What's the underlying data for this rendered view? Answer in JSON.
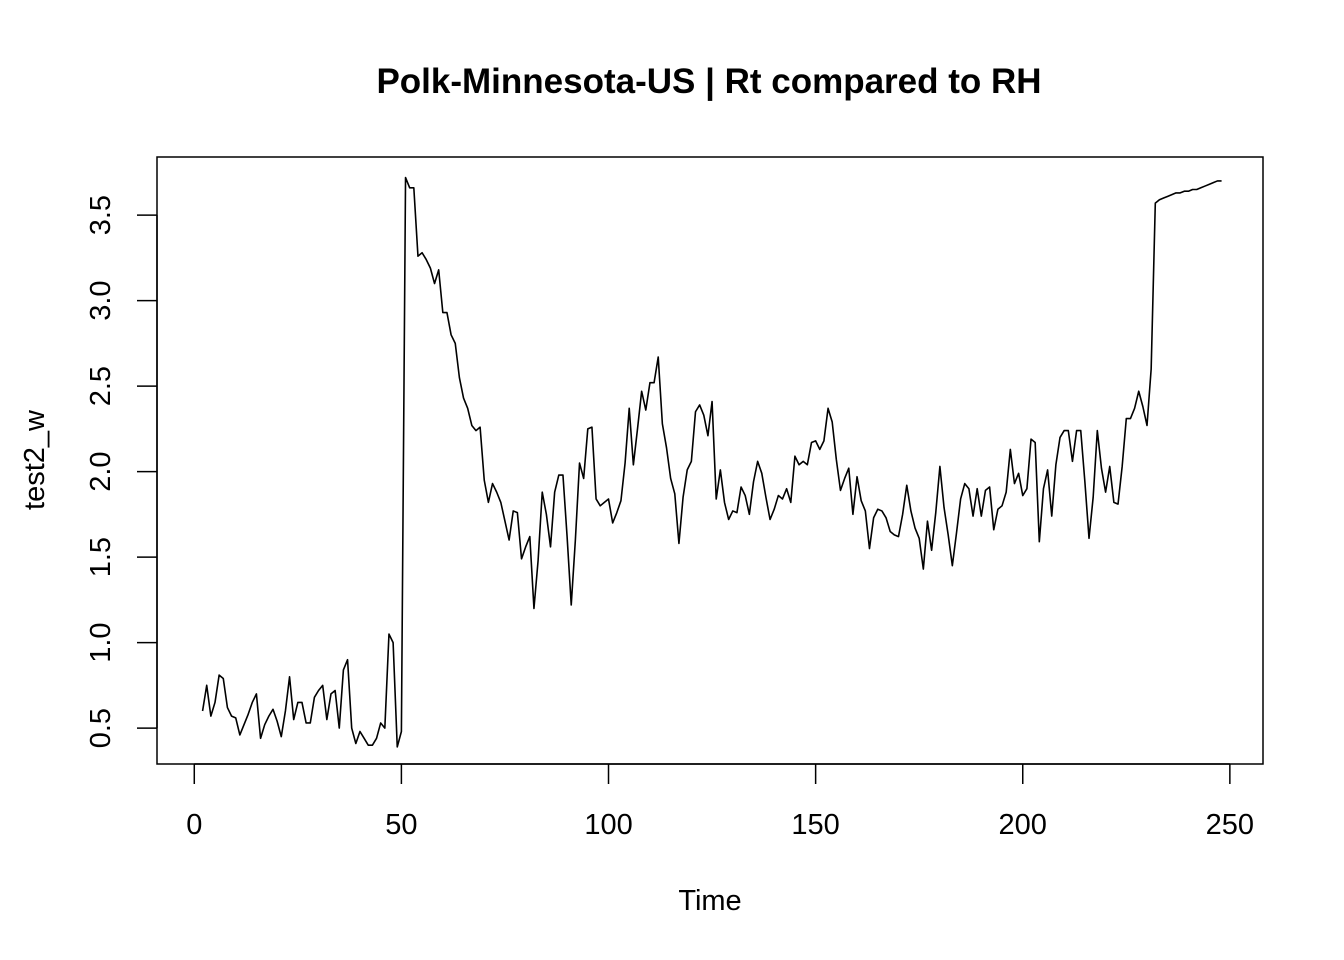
{
  "chart_data": {
    "type": "line",
    "title": "Polk-Minnesota-US | Rt compared to RH",
    "xlabel": "Time",
    "ylabel": "test2_w",
    "xlim": [
      -9,
      258
    ],
    "ylim": [
      0.29,
      3.84
    ],
    "x_ticks": [
      0,
      50,
      100,
      150,
      200,
      250
    ],
    "x_tick_labels": [
      "0",
      "50",
      "100",
      "150",
      "200",
      "250"
    ],
    "y_ticks": [
      0.5,
      1.0,
      1.5,
      2.0,
      2.5,
      3.0,
      3.5
    ],
    "y_tick_labels": [
      "0.5",
      "1.0",
      "1.5",
      "2.0",
      "2.5",
      "3.0",
      "3.5"
    ],
    "grid": false,
    "legend": null,
    "line_color": "#000000",
    "series": [
      {
        "x_start": 2,
        "x_step": 1,
        "values": [
          0.6,
          0.75,
          0.57,
          0.65,
          0.81,
          0.79,
          0.62,
          0.57,
          0.56,
          0.46,
          0.52,
          0.58,
          0.65,
          0.7,
          0.44,
          0.52,
          0.57,
          0.61,
          0.54,
          0.45,
          0.6,
          0.8,
          0.55,
          0.65,
          0.65,
          0.53,
          0.53,
          0.68,
          0.72,
          0.75,
          0.55,
          0.7,
          0.72,
          0.5,
          0.84,
          0.9,
          0.5,
          0.41,
          0.48,
          0.44,
          0.4,
          0.4,
          0.44,
          0.53,
          0.5,
          1.05,
          1.0,
          0.39,
          0.48,
          3.72,
          3.66,
          3.66,
          3.26,
          3.28,
          3.24,
          3.19,
          3.1,
          3.18,
          2.93,
          2.93,
          2.8,
          2.75,
          2.55,
          2.43,
          2.37,
          2.27,
          2.24,
          2.26,
          1.95,
          1.82,
          1.93,
          1.88,
          1.82,
          1.71,
          1.6,
          1.77,
          1.76,
          1.49,
          1.56,
          1.62,
          1.2,
          1.48,
          1.88,
          1.75,
          1.56,
          1.88,
          1.98,
          1.98,
          1.62,
          1.22,
          1.6,
          2.05,
          1.96,
          2.25,
          2.26,
          1.84,
          1.8,
          1.82,
          1.84,
          1.7,
          1.76,
          1.83,
          2.05,
          2.37,
          2.04,
          2.25,
          2.47,
          2.36,
          2.52,
          2.52,
          2.67,
          2.28,
          2.14,
          1.96,
          1.87,
          1.58,
          1.85,
          2.01,
          2.06,
          2.35,
          2.39,
          2.33,
          2.21,
          2.41,
          1.84,
          2.01,
          1.82,
          1.72,
          1.77,
          1.76,
          1.91,
          1.86,
          1.75,
          1.94,
          2.06,
          1.99,
          1.85,
          1.72,
          1.78,
          1.86,
          1.84,
          1.9,
          1.82,
          2.09,
          2.04,
          2.06,
          2.04,
          2.17,
          2.18,
          2.13,
          2.18,
          2.37,
          2.29,
          2.07,
          1.89,
          1.96,
          2.02,
          1.75,
          1.97,
          1.83,
          1.77,
          1.55,
          1.73,
          1.78,
          1.77,
          1.73,
          1.65,
          1.63,
          1.62,
          1.75,
          1.92,
          1.77,
          1.67,
          1.61,
          1.43,
          1.71,
          1.54,
          1.76,
          2.03,
          1.79,
          1.63,
          1.45,
          1.64,
          1.84,
          1.93,
          1.9,
          1.74,
          1.9,
          1.74,
          1.89,
          1.91,
          1.66,
          1.78,
          1.8,
          1.88,
          2.13,
          1.93,
          1.99,
          1.86,
          1.9,
          2.19,
          2.17,
          1.59,
          1.9,
          2.01,
          1.74,
          2.04,
          2.2,
          2.24,
          2.24,
          2.06,
          2.24,
          2.24,
          1.94,
          1.61,
          1.85,
          2.24,
          2.02,
          1.88,
          2.03,
          1.82,
          1.81,
          2.03,
          2.31,
          2.31,
          2.37,
          2.47,
          2.38,
          2.27,
          2.6,
          3.57,
          3.59,
          3.6,
          3.61,
          3.62,
          3.63,
          3.63,
          3.64,
          3.64,
          3.65,
          3.65,
          3.66,
          3.67,
          3.68,
          3.69,
          3.7,
          3.7
        ]
      }
    ]
  }
}
